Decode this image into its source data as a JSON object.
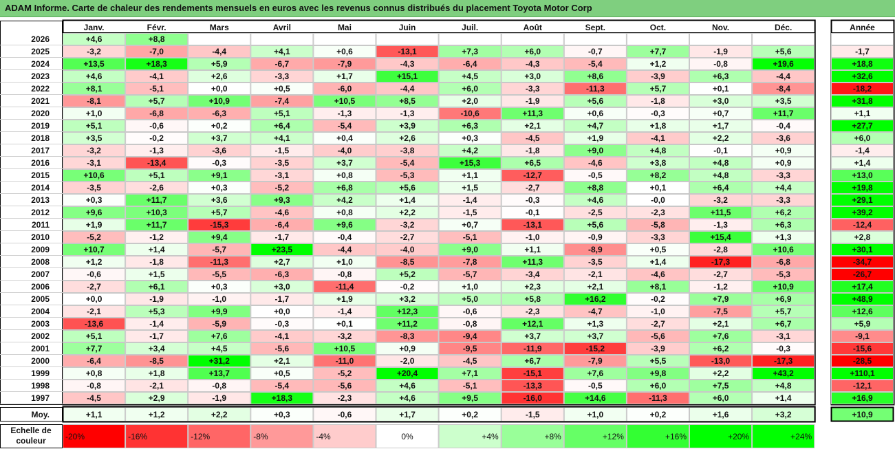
{
  "title": "ADAM Informe. Carte de chaleur des rendements mensuels en euros avec les revenus connus distribués du placement Toyota Motor Corp",
  "chart_data": {
    "type": "heatmap",
    "columns": [
      "Janv.",
      "Févr.",
      "Mars",
      "Avril",
      "Mai",
      "Juin",
      "Juil.",
      "Août",
      "Sept.",
      "Oct.",
      "Nov.",
      "Déc."
    ],
    "year_column": "Année",
    "rows": [
      {
        "year": "2026",
        "months": [
          "+4,6",
          "+8,8",
          "",
          "",
          "",
          "",
          "",
          "",
          "",
          "",
          "",
          ""
        ],
        "annual": ""
      },
      {
        "year": "2025",
        "months": [
          "-3,2",
          "-7,0",
          "-4,4",
          "+4,1",
          "+0,6",
          "-13,1",
          "+7,3",
          "+6,0",
          "-0,7",
          "+7,7",
          "-1,9",
          "+5,6"
        ],
        "annual": "-1,7"
      },
      {
        "year": "2024",
        "months": [
          "+13,5",
          "+18,3",
          "+5,9",
          "-6,7",
          "-7,9",
          "-4,3",
          "-6,4",
          "-4,3",
          "-5,4",
          "+1,2",
          "-0,8",
          "+19,6"
        ],
        "annual": "+18,8"
      },
      {
        "year": "2023",
        "months": [
          "+4,6",
          "-4,1",
          "+2,6",
          "-3,3",
          "+1,7",
          "+15,1",
          "+4,5",
          "+3,0",
          "+8,6",
          "-3,9",
          "+6,3",
          "-4,4"
        ],
        "annual": "+32,6"
      },
      {
        "year": "2022",
        "months": [
          "+8,1",
          "-5,1",
          "+0,0",
          "+0,5",
          "-6,0",
          "-4,4",
          "+6,0",
          "-3,3",
          "-11,3",
          "+5,7",
          "+0,1",
          "-8,4"
        ],
        "annual": "-18,2"
      },
      {
        "year": "2021",
        "months": [
          "-8,1",
          "+5,7",
          "+10,9",
          "-7,4",
          "+10,5",
          "+8,5",
          "+2,0",
          "-1,9",
          "+5,6",
          "-1,8",
          "+3,0",
          "+3,5"
        ],
        "annual": "+31,8"
      },
      {
        "year": "2020",
        "months": [
          "+1,0",
          "-6,8",
          "-6,3",
          "+5,1",
          "-1,3",
          "-1,3",
          "-10,6",
          "+11,3",
          "+0,6",
          "-0,3",
          "+0,7",
          "+11,7"
        ],
        "annual": "+1,1"
      },
      {
        "year": "2019",
        "months": [
          "+5,1",
          "-0,6",
          "+0,2",
          "+6,4",
          "-5,4",
          "+3,9",
          "+6,3",
          "+2,1",
          "+4,7",
          "+1,8",
          "+1,7",
          "-0,4"
        ],
        "annual": "+27,7"
      },
      {
        "year": "2018",
        "months": [
          "+3,5",
          "-0,2",
          "+3,7",
          "+4,1",
          "+0,4",
          "+2,6",
          "+0,3",
          "-4,5",
          "+1,9",
          "-4,1",
          "+2,2",
          "-3,6"
        ],
        "annual": "+6,0"
      },
      {
        "year": "2017",
        "months": [
          "-3,2",
          "-1,3",
          "-3,6",
          "-1,5",
          "-4,0",
          "-3,8",
          "+4,2",
          "-1,8",
          "+9,0",
          "+4,8",
          "-0,1",
          "+0,9"
        ],
        "annual": "-1,4"
      },
      {
        "year": "2016",
        "months": [
          "-3,1",
          "-13,4",
          "-0,3",
          "-3,5",
          "+3,7",
          "-5,4",
          "+15,3",
          "+6,5",
          "-4,6",
          "+3,8",
          "+4,8",
          "+0,9"
        ],
        "annual": "+1,4"
      },
      {
        "year": "2015",
        "months": [
          "+10,6",
          "+5,1",
          "+9,1",
          "-3,1",
          "+0,8",
          "-5,3",
          "+1,1",
          "-12,7",
          "-0,5",
          "+8,2",
          "+4,8",
          "-3,3"
        ],
        "annual": "+13,0"
      },
      {
        "year": "2014",
        "months": [
          "-3,5",
          "-2,6",
          "+0,3",
          "-5,2",
          "+6,8",
          "+5,6",
          "+1,5",
          "-2,7",
          "+8,8",
          "+0,1",
          "+6,4",
          "+4,4"
        ],
        "annual": "+19,8"
      },
      {
        "year": "2013",
        "months": [
          "+0,3",
          "+11,7",
          "+3,6",
          "+9,3",
          "+4,2",
          "+1,4",
          "-1,4",
          "-0,3",
          "+4,6",
          "-0,0",
          "-3,2",
          "-3,3"
        ],
        "annual": "+29,1"
      },
      {
        "year": "2012",
        "months": [
          "+9,6",
          "+10,3",
          "+5,7",
          "-4,6",
          "+0,8",
          "+2,2",
          "-1,5",
          "-0,1",
          "-2,5",
          "-2,3",
          "+11,5",
          "+6,2"
        ],
        "annual": "+39,2"
      },
      {
        "year": "2011",
        "months": [
          "+1,9",
          "+11,7",
          "-15,3",
          "-6,4",
          "+9,6",
          "-3,2",
          "+0,7",
          "-13,1",
          "+5,6",
          "-5,8",
          "-1,3",
          "+6,3"
        ],
        "annual": "-12,4"
      },
      {
        "year": "2010",
        "months": [
          "-5,2",
          "-1,2",
          "+9,4",
          "-1,7",
          "-0,4",
          "-2,7",
          "-5,1",
          "-1,0",
          "-0,9",
          "-3,3",
          "+15,4",
          "+1,3"
        ],
        "annual": "+2,8"
      },
      {
        "year": "2009",
        "months": [
          "+10,7",
          "+1,4",
          "-5,7",
          "+23,5",
          "-4,4",
          "-4,0",
          "+9,0",
          "+1,1",
          "-8,9",
          "+0,5",
          "-2,8",
          "+10,6"
        ],
        "annual": "+30,1"
      },
      {
        "year": "2008",
        "months": [
          "+1,2",
          "-1,8",
          "-11,3",
          "+2,7",
          "+1,0",
          "-8,5",
          "-7,8",
          "+11,3",
          "-3,5",
          "+1,4",
          "-17,3",
          "-6,8"
        ],
        "annual": "-34,7"
      },
      {
        "year": "2007",
        "months": [
          "-0,6",
          "+1,5",
          "-5,5",
          "-6,3",
          "-0,8",
          "+5,2",
          "-5,7",
          "-3,4",
          "-2,1",
          "-4,6",
          "-2,7",
          "-5,3"
        ],
        "annual": "-26,7"
      },
      {
        "year": "2006",
        "months": [
          "-2,7",
          "+6,1",
          "+0,3",
          "+3,0",
          "-11,4",
          "-0,2",
          "+1,0",
          "+2,3",
          "+2,1",
          "+8,1",
          "-1,2",
          "+10,9"
        ],
        "annual": "+17,4"
      },
      {
        "year": "2005",
        "months": [
          "+0,0",
          "-1,9",
          "-1,0",
          "-1,7",
          "+1,9",
          "+3,2",
          "+5,0",
          "+5,8",
          "+16,2",
          "-0,2",
          "+7,9",
          "+6,9"
        ],
        "annual": "+48,9"
      },
      {
        "year": "2004",
        "months": [
          "-2,1",
          "+5,3",
          "+9,9",
          "+0,0",
          "-1,4",
          "+12,3",
          "-0,6",
          "-2,3",
          "-4,7",
          "-1,0",
          "-7,5",
          "+5,7"
        ],
        "annual": "+12,6"
      },
      {
        "year": "2003",
        "months": [
          "-13,6",
          "-1,4",
          "-5,9",
          "-0,3",
          "+0,1",
          "+11,2",
          "-0,8",
          "+12,1",
          "+1,3",
          "-2,7",
          "+2,1",
          "+6,7"
        ],
        "annual": "+5,9"
      },
      {
        "year": "2002",
        "months": [
          "+5,1",
          "-1,7",
          "+7,6",
          "-4,1",
          "-3,2",
          "-8,3",
          "-9,4",
          "+3,7",
          "+3,7",
          "-5,6",
          "+7,6",
          "-3,1"
        ],
        "annual": "-9,1"
      },
      {
        "year": "2001",
        "months": [
          "+7,7",
          "+3,4",
          "+4,5",
          "-5,6",
          "+10,5",
          "+0,9",
          "-9,5",
          "-11,9",
          "-15,2",
          "-3,9",
          "+6,2",
          "-0,3"
        ],
        "annual": "-15,6"
      },
      {
        "year": "2000",
        "months": [
          "-6,4",
          "-8,5",
          "+31,2",
          "+2,1",
          "-11,0",
          "-2,0",
          "-4,5",
          "+6,7",
          "-7,9",
          "+5,5",
          "-13,0",
          "-17,3"
        ],
        "annual": "-28,5"
      },
      {
        "year": "1999",
        "months": [
          "+0,8",
          "+1,8",
          "+13,7",
          "+0,5",
          "-5,2",
          "+20,4",
          "+7,1",
          "-15,1",
          "+7,6",
          "+9,8",
          "+2,2",
          "+43,2"
        ],
        "annual": "+110,1"
      },
      {
        "year": "1998",
        "months": [
          "-0,8",
          "-2,1",
          "-0,8",
          "-5,4",
          "-5,6",
          "+4,6",
          "-5,1",
          "-13,3",
          "-0,5",
          "+6,0",
          "+7,5",
          "+4,8"
        ],
        "annual": "-12,1"
      },
      {
        "year": "1997",
        "months": [
          "-4,5",
          "+2,9",
          "-1,9",
          "+18,3",
          "-2,3",
          "+4,6",
          "+9,5",
          "-16,0",
          "+14,6",
          "-11,3",
          "+6,0",
          "+1,4"
        ],
        "annual": "+16,9"
      }
    ],
    "average_row": {
      "label": "Moy.",
      "months": [
        "+1,1",
        "+1,2",
        "+2,2",
        "+0,3",
        "-0,6",
        "+1,7",
        "+0,2",
        "-1,5",
        "+1,0",
        "+0,2",
        "+1,6",
        "+3,2"
      ],
      "annual": "+10,9"
    },
    "color_scale": {
      "label_lines": [
        "Echelle de",
        "couleur"
      ],
      "steps": [
        "-20%",
        "-16%",
        "-12%",
        "-8%",
        "-4%",
        "0%",
        "+4%",
        "+8%",
        "+12%",
        "+16%",
        "+20%",
        "+24%"
      ],
      "step_values": [
        -20,
        -16,
        -12,
        -8,
        -4,
        0,
        4,
        8,
        12,
        16,
        20,
        24
      ],
      "negative_color": "#ff0000",
      "positive_color": "#00ff00",
      "neutral_color": "#ffffff"
    }
  }
}
